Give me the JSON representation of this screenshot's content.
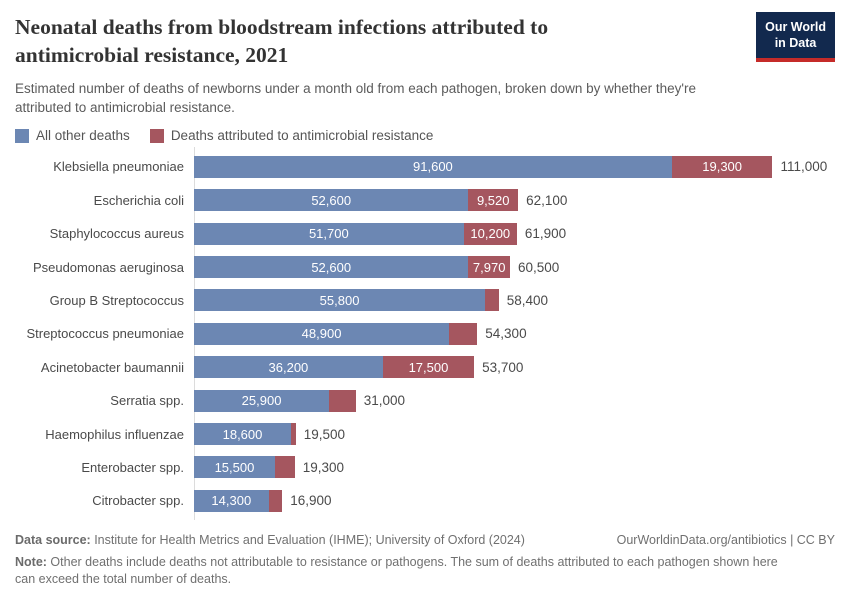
{
  "header": {
    "title": "Neonatal deaths from bloodstream infections attributed to\nantimicrobial resistance, 2021",
    "subtitle": "Estimated number of deaths of newborns under a month old from each pathogen, broken down by whether they're\nattributed to antimicrobial resistance.",
    "logo": {
      "line1": "Our World",
      "line2": "in Data",
      "bg_color": "#12294E",
      "stripe_color": "#C52B29"
    }
  },
  "legend": {
    "items": [
      {
        "label": "All other deaths",
        "color": "#6C87B3"
      },
      {
        "label": "Deaths attributed to antimicrobial resistance",
        "color": "#A5565F"
      }
    ]
  },
  "chart_data": {
    "type": "bar",
    "orientation": "horizontal",
    "stacked": true,
    "grid": false,
    "legend_position": "top",
    "xmax": 111000,
    "categories": [
      "Klebsiella pneumoniae",
      "Escherichia coli",
      "Staphylococcus aureus",
      "Pseudomonas aeruginosa",
      "Group B Streptococcus",
      "Streptococcus pneumoniae",
      "Acinetobacter baumannii",
      "Serratia spp.",
      "Haemophilus influenzae",
      "Enterobacter spp.",
      "Citrobacter spp."
    ],
    "series": [
      {
        "name": "All other deaths",
        "color": "#6C87B3",
        "values": [
          91600,
          52600,
          51700,
          52600,
          55800,
          48900,
          36200,
          25900,
          18600,
          15500,
          14300
        ],
        "labels": [
          "91,600",
          "52,600",
          "51,700",
          "52,600",
          "55,800",
          "48,900",
          "36,200",
          "25,900",
          "18,600",
          "15,500",
          "14,300"
        ]
      },
      {
        "name": "Deaths attributed to antimicrobial resistance",
        "color": "#A5565F",
        "values": [
          19300,
          9520,
          10200,
          7970,
          2600,
          5400,
          17500,
          5100,
          900,
          3800,
          2600
        ],
        "labels": [
          "19,300",
          "9,520",
          "10,200",
          "7,970",
          "",
          "",
          "17,500",
          "",
          "",
          "",
          ""
        ]
      }
    ],
    "totals": [
      111000,
      62100,
      61900,
      60500,
      58400,
      54300,
      53700,
      31000,
      19500,
      19300,
      16900
    ],
    "total_labels": [
      "111,000",
      "62,100",
      "61,900",
      "60,500",
      "58,400",
      "54,300",
      "53,700",
      "31,000",
      "19,500",
      "19,300",
      "16,900"
    ]
  },
  "footer": {
    "data_source_label": "Data source:",
    "data_source_text": " Institute for Health Metrics and Evaluation (IHME); University of Oxford (2024)",
    "link": "OurWorldinData.org/antibiotics | CC BY",
    "note_label": "Note:",
    "note_text": " Other deaths include deaths not attributable to resistance or pathogens. The sum of deaths attributed to each pathogen shown here\ncan exceed the total number of deaths."
  }
}
